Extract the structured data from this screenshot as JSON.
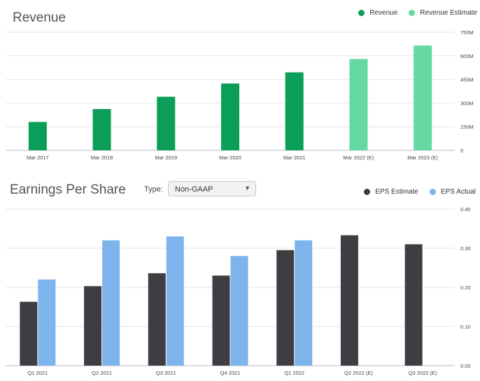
{
  "revenue": {
    "title": "Revenue",
    "legend": [
      {
        "label": "Revenue",
        "color": "#0a9e58"
      },
      {
        "label": "Revenue Estimate",
        "color": "#66d9a3"
      }
    ]
  },
  "eps": {
    "title": "Earnings Per Share",
    "type_label": "Type:",
    "type_value": "Non-GAAP",
    "legend": [
      {
        "label": "EPS Estimate",
        "color": "#3e3e42"
      },
      {
        "label": "EPS Actual",
        "color": "#7db4ec"
      }
    ]
  },
  "chart_data": [
    {
      "type": "bar",
      "title": "Revenue",
      "categories": [
        "Mar 2017",
        "Mar 2018",
        "Mar 2019",
        "Mar 2020",
        "Mar 2021",
        "Mar 2022 (E)",
        "Mar 2023 (E)"
      ],
      "series": [
        {
          "name": "Revenue",
          "values": [
            180,
            262,
            340,
            424,
            495,
            null,
            null
          ],
          "color": "#0a9e58"
        },
        {
          "name": "Revenue Estimate",
          "values": [
            null,
            null,
            null,
            null,
            null,
            580,
            665
          ],
          "color": "#66d9a3"
        }
      ],
      "ylim": [
        0,
        750
      ],
      "yticks": [
        0,
        150,
        300,
        450,
        600,
        750
      ],
      "ytick_labels": [
        "0",
        "150M",
        "300M",
        "450M",
        "600M",
        "750M"
      ],
      "y_axis_position": "right",
      "grid": true,
      "legend_position": "top-right"
    },
    {
      "type": "bar",
      "title": "Earnings Per Share",
      "categories": [
        "Q1 2021",
        "Q2 2021",
        "Q3 2021",
        "Q4 2021",
        "Q1 2022",
        "Q2 2022 (E)",
        "Q3 2022 (E)"
      ],
      "series": [
        {
          "name": "EPS Estimate",
          "values": [
            0.163,
            0.203,
            0.236,
            0.23,
            0.295,
            0.333,
            0.31
          ],
          "color": "#3e3e42"
        },
        {
          "name": "EPS Actual",
          "values": [
            0.22,
            0.32,
            0.33,
            0.28,
            0.32,
            null,
            null
          ],
          "color": "#7db4ec"
        }
      ],
      "ylim": [
        0,
        0.4
      ],
      "yticks": [
        0,
        0.1,
        0.2,
        0.3,
        0.4
      ],
      "ytick_labels": [
        "0.00",
        "0.10",
        "0.20",
        "0.30",
        "0.40"
      ],
      "y_axis_position": "right",
      "grid": true,
      "legend_position": "top-right"
    }
  ]
}
